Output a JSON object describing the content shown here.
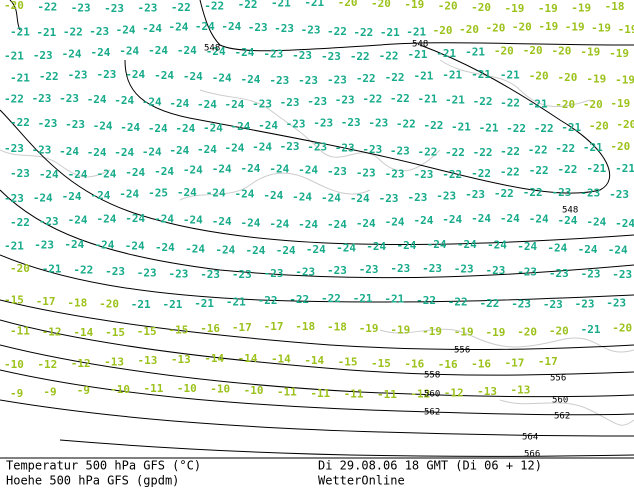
{
  "footer": {
    "line1_left": "Temperatur 500 hPa GFS (°C)",
    "line2_left": "Hoehe 500 hPa GFS (gpdm)",
    "line1_right": "Di 29.08.06 18 GMT (Di 06 + 12)",
    "line2_right": "WetterOnline"
  },
  "label_colors": {
    "warm": "#9cc21c",
    "cold": "#17ab8a",
    "warm_from": -20
  },
  "temperature_rows": [
    [
      -20,
      -22,
      -23,
      -23,
      -23,
      -22,
      -22,
      -22,
      -21,
      -21,
      -20,
      -20,
      -19,
      -20,
      -20,
      -19,
      -19,
      -19,
      -18
    ],
    [
      -21,
      -21,
      -22,
      -23,
      -24,
      -24,
      -24,
      -24,
      -24,
      -23,
      -23,
      -23,
      -22,
      -22,
      -21,
      -21,
      -20,
      -20,
      -20,
      -20,
      -19,
      -19,
      -19,
      -19
    ],
    [
      -21,
      -23,
      -24,
      -24,
      -24,
      -24,
      -24,
      -24,
      -24,
      -23,
      -23,
      -23,
      -22,
      -22,
      -21,
      -21,
      -21,
      -20,
      -20,
      -20,
      -19,
      -19
    ],
    [
      -21,
      -22,
      -23,
      -23,
      -24,
      -24,
      -24,
      -24,
      -24,
      -23,
      -23,
      -23,
      -22,
      -22,
      -21,
      -21,
      -21,
      -21,
      -20,
      -20,
      -19,
      -19
    ],
    [
      -22,
      -23,
      -23,
      -24,
      -24,
      -24,
      -24,
      -24,
      -24,
      -23,
      -23,
      -23,
      -23,
      -22,
      -22,
      -21,
      -21,
      -22,
      -22,
      -21,
      -20,
      -20,
      -19
    ],
    [
      -22,
      -23,
      -23,
      -24,
      -24,
      -24,
      -24,
      -24,
      -24,
      -24,
      -23,
      -23,
      -23,
      -23,
      -22,
      -22,
      -21,
      -21,
      -22,
      -22,
      -21,
      -20,
      -20
    ],
    [
      -23,
      -23,
      -24,
      -24,
      -24,
      -24,
      -24,
      -24,
      -24,
      -24,
      -23,
      -23,
      -23,
      -23,
      -23,
      -22,
      -22,
      -22,
      -22,
      -22,
      -22,
      -21,
      -20
    ],
    [
      -23,
      -24,
      -24,
      -24,
      -24,
      -24,
      -24,
      -24,
      -24,
      -24,
      -24,
      -23,
      -23,
      -23,
      -23,
      -22,
      -22,
      -22,
      -22,
      -22,
      -21,
      -21
    ],
    [
      -23,
      -24,
      -24,
      -24,
      -24,
      -25,
      -24,
      -24,
      -24,
      -24,
      -24,
      -24,
      -24,
      -23,
      -23,
      -23,
      -23,
      -22,
      -22,
      -23,
      -23,
      -23
    ],
    [
      -22,
      -23,
      -24,
      -24,
      -24,
      -24,
      -24,
      -24,
      -24,
      -24,
      -24,
      -24,
      -24,
      -24,
      -24,
      -24,
      -24,
      -24,
      -24,
      -24,
      -24,
      -24
    ],
    [
      -21,
      -23,
      -24,
      -24,
      -24,
      -24,
      -24,
      -24,
      -24,
      -24,
      -24,
      -24,
      -24,
      -24,
      -24,
      -24,
      -24,
      -24,
      -24,
      -24,
      -24
    ],
    [
      -20,
      -21,
      -22,
      -23,
      -23,
      -23,
      -23,
      -23,
      -23,
      -23,
      -23,
      -23,
      -23,
      -23,
      -23,
      -23,
      -23,
      -23,
      -23,
      -23
    ],
    [
      -15,
      -17,
      -18,
      -20,
      -21,
      -21,
      -21,
      -21,
      -22,
      -22,
      -22,
      -21,
      -21,
      -22,
      -22,
      -22,
      -23,
      -23,
      -23,
      -23
    ],
    [
      -11,
      -12,
      -14,
      -15,
      -15,
      -15,
      -16,
      -17,
      -17,
      -18,
      -18,
      -19,
      -19,
      -19,
      -19,
      -19,
      -20,
      -20,
      -21,
      -20
    ],
    [
      -10,
      -12,
      -12,
      -13,
      -13,
      -13,
      -14,
      -14,
      -14,
      -14,
      -15,
      -15,
      -16,
      -16,
      -16,
      -17,
      -17
    ],
    [
      -9,
      -9,
      -9,
      -10,
      -11,
      -10,
      -10,
      -10,
      -11,
      -11,
      -11,
      -11,
      -12,
      -12,
      -13,
      -13
    ]
  ],
  "contour_labels": [
    548,
    548,
    548,
    556,
    558,
    556,
    560,
    560,
    562,
    562,
    564,
    566
  ]
}
